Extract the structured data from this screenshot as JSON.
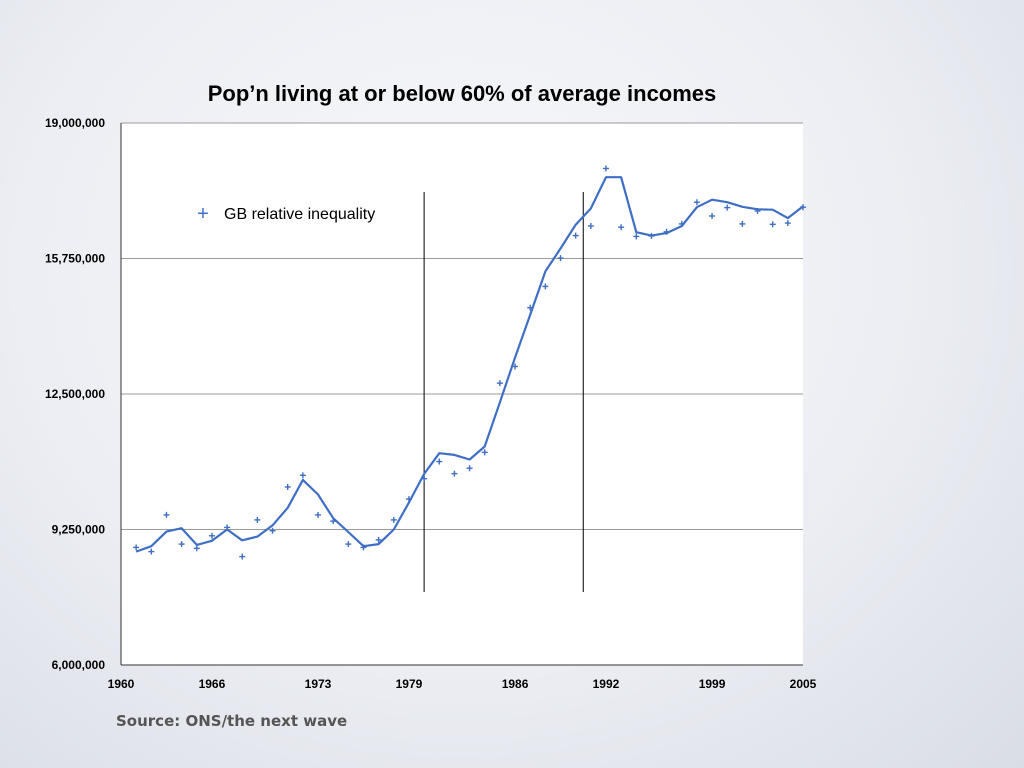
{
  "slide": {
    "source": "Source: ONS/the next wave"
  },
  "chart_data": {
    "type": "line",
    "title": "Pop’n living at or below 60% of average incomes",
    "xlabel": "",
    "ylabel": "",
    "xlim": [
      1960,
      2005
    ],
    "ylim": [
      6000000,
      19000000
    ],
    "x_ticks": [
      1960,
      1966,
      1973,
      1979,
      1986,
      1992,
      1999,
      2005
    ],
    "x_tick_labels": [
      "1960",
      "1966",
      "1973",
      "1979",
      "1986",
      "1992",
      "1999",
      "2005"
    ],
    "y_ticks": [
      6000000,
      9250000,
      12500000,
      15750000,
      19000000
    ],
    "y_tick_labels": [
      "6,000,000",
      "9,250,000",
      "12,500,000",
      "15,750,000",
      "19,000,000"
    ],
    "grid": true,
    "legend_position": "top-left",
    "series_color": "#3f6fc4",
    "series": [
      {
        "name": "GB relative inequality",
        "marker": "+",
        "x": [
          1961,
          1962,
          1963,
          1964,
          1965,
          1966,
          1967,
          1968,
          1969,
          1970,
          1971,
          1972,
          1973,
          1974,
          1975,
          1976,
          1977,
          1978,
          1979,
          1980,
          1981,
          1982,
          1983,
          1984,
          1985,
          1986,
          1987,
          1988,
          1989,
          1990,
          1991,
          1992,
          1993,
          1994,
          1995,
          1996,
          1997,
          1998,
          1999,
          2000,
          2001,
          2002,
          2003,
          2004,
          2005
        ],
        "values": [
          8820000,
          8720000,
          9600000,
          8900000,
          8800000,
          9100000,
          9300000,
          8600000,
          9480000,
          9220000,
          10270000,
          10550000,
          9600000,
          9450000,
          8900000,
          8820000,
          9000000,
          9480000,
          9980000,
          10470000,
          10880000,
          10590000,
          10720000,
          11100000,
          12760000,
          13160000,
          14570000,
          15080000,
          15760000,
          16300000,
          16530000,
          17910000,
          16500000,
          16280000,
          16290000,
          16390000,
          16580000,
          17100000,
          16770000,
          16970000,
          16580000,
          16890000,
          16570000,
          16600000,
          16980000
        ]
      },
      {
        "name": "",
        "type": "line",
        "x": [
          1961,
          1962,
          1963,
          1964,
          1965,
          1966,
          1967,
          1968,
          1969,
          1970,
          1971,
          1972,
          1973,
          1974,
          1975,
          1976,
          1977,
          1978,
          1979,
          1980,
          1981,
          1982,
          1983,
          1984,
          1985,
          1986,
          1987,
          1988,
          1989,
          1990,
          1991,
          1992,
          1993,
          1994,
          1995,
          1996,
          1997,
          1998,
          1999,
          2000,
          2001,
          2002,
          2003,
          2004,
          2005
        ],
        "values": [
          8720000,
          8850000,
          9200000,
          9280000,
          8880000,
          8980000,
          9250000,
          8990000,
          9080000,
          9350000,
          9770000,
          10440000,
          10090000,
          9520000,
          9190000,
          8850000,
          8900000,
          9250000,
          9900000,
          10580000,
          11080000,
          11040000,
          10930000,
          11240000,
          12300000,
          13370000,
          14400000,
          15440000,
          15990000,
          16560000,
          16950000,
          17700000,
          17700000,
          16380000,
          16300000,
          16360000,
          16530000,
          16980000,
          17160000,
          17100000,
          16990000,
          16930000,
          16920000,
          16720000,
          17000000
        ]
      }
    ],
    "reference_lines_x": [
      1980,
      1990.5
    ]
  }
}
